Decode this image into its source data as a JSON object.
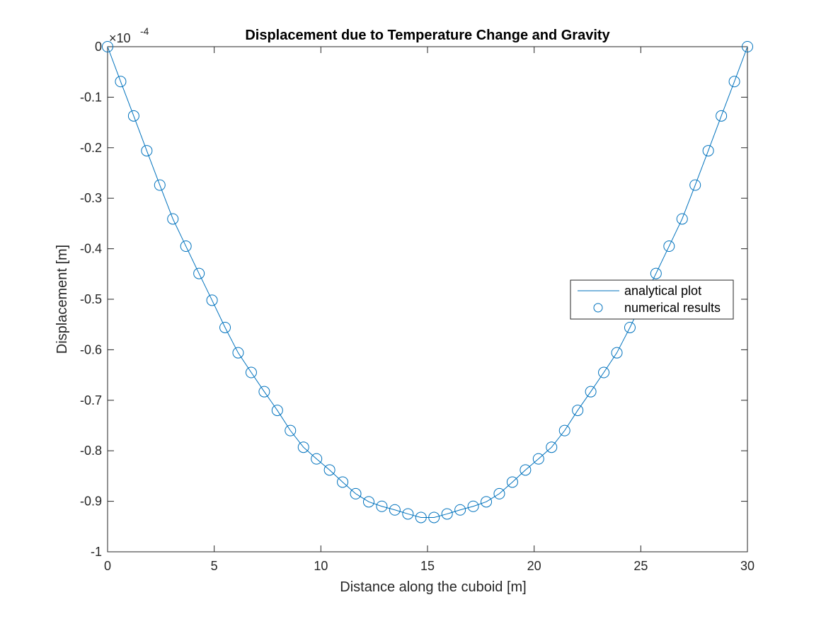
{
  "chart_data": {
    "type": "line",
    "title": "Displacement due to Temperature Change and Gravity",
    "xlabel": "Distance along the cuboid [m]",
    "ylabel": "Displacement [m]",
    "y_exponent_base": "×10",
    "y_exponent_power": "-4",
    "xlim": [
      0,
      30
    ],
    "ylim": [
      -1,
      0
    ],
    "xticks": [
      0,
      5,
      10,
      15,
      20,
      25,
      30
    ],
    "xtick_labels": [
      "0",
      "5",
      "10",
      "15",
      "20",
      "25",
      "30"
    ],
    "yticks": [
      0,
      -0.1,
      -0.2,
      -0.3,
      -0.4,
      -0.5,
      -0.6,
      -0.7,
      -0.8,
      -0.9,
      -1
    ],
    "ytick_labels": [
      "0",
      "-0.1",
      "-0.2",
      "-0.3",
      "-0.4",
      "-0.5",
      "-0.6",
      "-0.7",
      "-0.8",
      "-0.9",
      "-1"
    ],
    "grid": false,
    "legend_position": "right",
    "colors": {
      "series": "#0072BD",
      "axes": "#262626"
    },
    "series": [
      {
        "name": "analytical plot",
        "style": "line",
        "x": [
          0,
          0.6,
          1.2,
          1.8,
          2.4,
          3.0,
          3.6,
          4.2,
          4.8,
          5.4,
          6.0,
          6.6,
          7.2,
          7.8,
          8.4,
          9.0,
          9.6,
          10.2,
          10.8,
          11.4,
          12.0,
          12.6,
          13.2,
          13.8,
          14.4,
          15.0,
          15.6,
          16.2,
          16.8,
          17.4,
          18.0,
          18.6,
          19.2,
          19.8,
          20.4,
          21.0,
          21.6,
          22.2,
          22.8,
          23.4,
          24.0,
          24.6,
          25.2,
          25.8,
          26.4,
          27.0,
          27.6,
          28.2,
          28.8,
          29.4,
          30.0
        ],
        "y": [
          0,
          -0.0693,
          -0.1373,
          -0.2027,
          -0.2661,
          -0.327,
          -0.3853,
          -0.4412,
          -0.4945,
          -0.5453,
          -0.5935,
          -0.6392,
          -0.6824,
          -0.7231,
          -0.7612,
          -0.7968,
          -0.8299,
          -0.8604,
          -0.8884,
          -0.9139,
          -0.9368,
          -0.9572,
          -0.9751,
          -0.9904,
          -1.0032,
          -1.0135,
          -0.9904,
          -0.9751,
          -0.9572,
          -0.9368,
          -0.9139,
          -0.8884,
          -0.8604,
          -0.8299,
          -0.7968,
          -0.7612,
          -0.7231,
          -0.6824,
          -0.6392,
          -0.5935,
          -0.5453,
          -0.4945,
          -0.4412,
          -0.3853,
          -0.327,
          -0.2661,
          -0.2027,
          -0.1373,
          -0.0693,
          0,
          0
        ]
      },
      {
        "name": "numerical results",
        "style": "markers",
        "marker": "circle",
        "x": [
          0,
          0.612,
          1.224,
          1.837,
          2.449,
          3.061,
          3.673,
          4.286,
          4.898,
          5.51,
          6.122,
          6.735,
          7.347,
          7.959,
          8.571,
          9.184,
          9.796,
          10.408,
          11.02,
          11.633,
          12.245,
          12.857,
          13.469,
          14.082,
          14.694,
          15.306,
          15.918,
          16.531,
          17.143,
          17.755,
          18.367,
          18.98,
          19.592,
          20.204,
          20.816,
          21.429,
          22.041,
          22.653,
          23.265,
          23.878,
          24.49,
          25.102,
          25.714,
          26.327,
          26.939,
          27.551,
          28.163,
          28.776,
          29.388,
          30.0
        ],
        "y": [
          0,
          -0.069,
          -0.137,
          -0.206,
          -0.274,
          -0.341,
          -0.395,
          -0.449,
          -0.502,
          -0.556,
          -0.606,
          -0.645,
          -0.683,
          -0.72,
          -0.76,
          -0.793,
          -0.816,
          -0.838,
          -0.862,
          -0.885,
          -0.901,
          -0.91,
          -0.917,
          -0.925,
          -0.932,
          -0.932,
          -0.925,
          -0.917,
          -0.91,
          -0.901,
          -0.885,
          -0.862,
          -0.838,
          -0.816,
          -0.793,
          -0.76,
          -0.72,
          -0.683,
          -0.645,
          -0.606,
          -0.556,
          -0.502,
          -0.449,
          -0.395,
          -0.341,
          -0.274,
          -0.206,
          -0.137,
          -0.069,
          0
        ]
      }
    ]
  }
}
